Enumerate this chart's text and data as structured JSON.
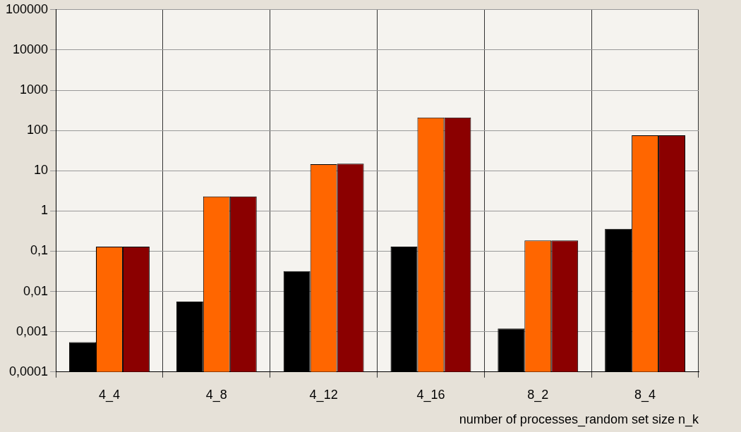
{
  "chart_data": {
    "type": "bar",
    "xlabel": "number of processes_random set size n_k",
    "categories": [
      "4_4",
      "4_8",
      "4_12",
      "4_16",
      "8_2",
      "8_4"
    ],
    "series": [
      {
        "color": "#000000",
        "values": [
          0.00055,
          0.0056,
          0.032,
          0.13,
          0.0012,
          0.36
        ]
      },
      {
        "color": "#ff6600",
        "values": [
          0.13,
          2.3,
          14.5,
          210,
          0.185,
          76
        ]
      },
      {
        "color": "#8b0000",
        "values": [
          0.13,
          2.3,
          15,
          210,
          0.185,
          76
        ]
      }
    ],
    "log": "y",
    "ylim": [
      0.0001,
      100000
    ],
    "yticks": [
      {
        "value": 0.0001,
        "label": "0,0001"
      },
      {
        "value": 0.001,
        "label": "0,001"
      },
      {
        "value": 0.01,
        "label": "0,01"
      },
      {
        "value": 0.1,
        "label": "0,1"
      },
      1,
      10,
      100,
      1000,
      10000,
      100000
    ],
    "grid": true,
    "legend": false
  }
}
